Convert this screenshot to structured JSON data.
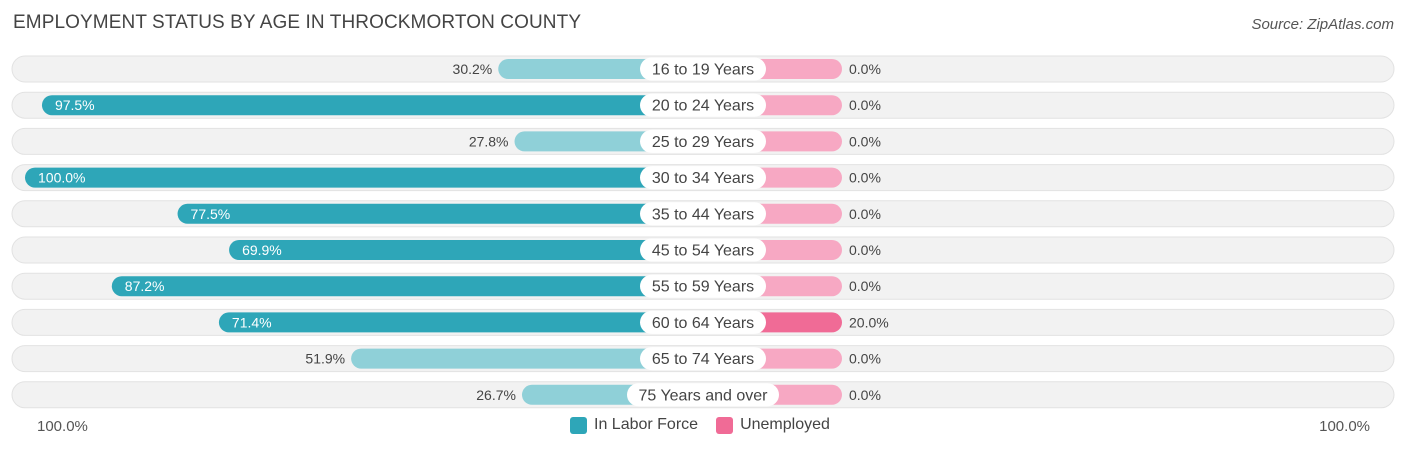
{
  "header": {
    "title": "EMPLOYMENT STATUS BY AGE IN THROCKMORTON COUNTY",
    "source": "Source: ZipAtlas.com"
  },
  "colors": {
    "labor_strong": "#2ea6b8",
    "labor_light": "#8fd0d8",
    "unemployed_strong": "#f06b96",
    "unemployed_light": "#f7a8c3",
    "row_background": "#f1f1f1"
  },
  "axis": {
    "left_label": "100.0%",
    "right_label": "100.0%"
  },
  "legend": [
    {
      "label": "In Labor Force",
      "color": "#2ea6b8"
    },
    {
      "label": "Unemployed",
      "color": "#f06b96"
    }
  ],
  "chart_data": {
    "type": "bar",
    "orientation": "horizontal-diverging",
    "title": "EMPLOYMENT STATUS BY AGE IN THROCKMORTON COUNTY",
    "categories": [
      "16 to 19 Years",
      "20 to 24 Years",
      "25 to 29 Years",
      "30 to 34 Years",
      "35 to 44 Years",
      "45 to 54 Years",
      "55 to 59 Years",
      "60 to 64 Years",
      "65 to 74 Years",
      "75 Years and over"
    ],
    "series": [
      {
        "name": "In Labor Force",
        "values": [
          30.2,
          97.5,
          27.8,
          100.0,
          77.5,
          69.9,
          87.2,
          71.4,
          51.9,
          26.7
        ],
        "labels": [
          "30.2%",
          "97.5%",
          "27.8%",
          "100.0%",
          "77.5%",
          "69.9%",
          "87.2%",
          "71.4%",
          "51.9%",
          "26.7%"
        ]
      },
      {
        "name": "Unemployed",
        "values": [
          0.0,
          0.0,
          0.0,
          0.0,
          0.0,
          0.0,
          0.0,
          20.0,
          0.0,
          0.0
        ],
        "labels": [
          "0.0%",
          "0.0%",
          "0.0%",
          "0.0%",
          "0.0%",
          "0.0%",
          "0.0%",
          "20.0%",
          "0.0%",
          "0.0%"
        ]
      }
    ],
    "xlim": [
      -100,
      100
    ],
    "legend_position": "bottom-center",
    "grid": false
  }
}
